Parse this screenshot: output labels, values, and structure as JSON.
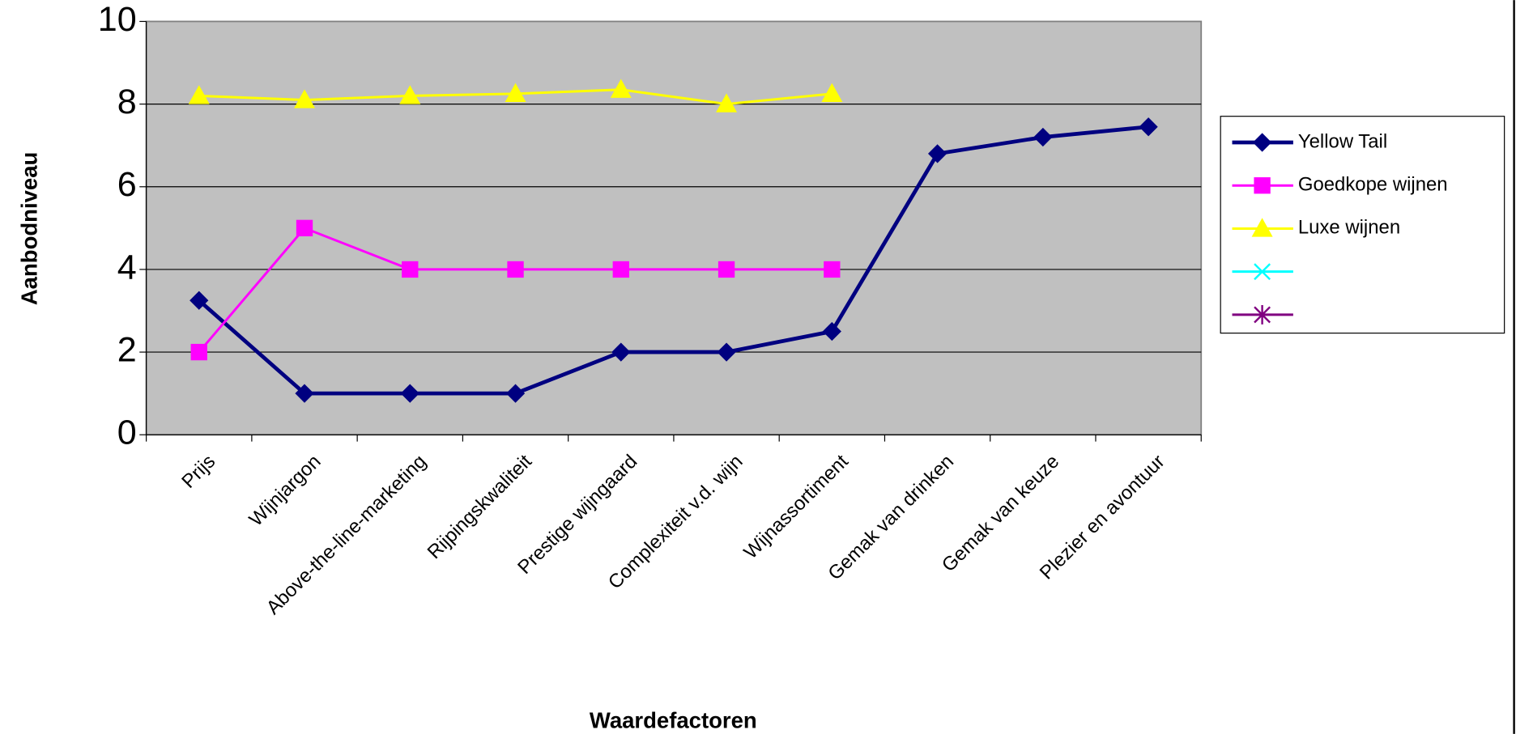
{
  "chart_data": {
    "type": "line",
    "x_label": "Waardefactoren",
    "y_label": "Aanbodniveau",
    "categories": [
      "Prijs",
      "Wijnjargon",
      "Above-the-line-marketing",
      "Rijpingskwaliteit",
      "Prestige wijngaard",
      "Complexiteit v.d. wijn",
      "Wijnassortiment",
      "Gemak van drinken",
      "Gemak van keuze",
      "Plezier en avontuur"
    ],
    "series": [
      {
        "name": "Yellow Tail",
        "color": "#000080",
        "marker": "diamond",
        "values": [
          3.25,
          1,
          1,
          1,
          2,
          2,
          2.5,
          6.8,
          7.2,
          7.45
        ]
      },
      {
        "name": "Goedkope wijnen",
        "color": "#ff00ff",
        "marker": "square",
        "values": [
          2,
          5,
          4,
          4,
          4,
          4,
          4,
          null,
          null,
          null
        ]
      },
      {
        "name": "Luxe wijnen",
        "color": "#ffff00",
        "marker": "triangle",
        "values": [
          8.2,
          8.1,
          8.2,
          8.25,
          8.35,
          8.0,
          8.25,
          null,
          null,
          null
        ]
      },
      {
        "name": null,
        "color": "#00ffff",
        "marker": "x",
        "values": [
          null,
          null,
          null,
          null,
          null,
          null,
          null,
          null,
          null,
          null
        ]
      },
      {
        "name": null,
        "color": "#800080",
        "marker": "star",
        "values": [
          null,
          null,
          null,
          null,
          null,
          null,
          null,
          null,
          null,
          null
        ]
      }
    ],
    "ylim": [
      0,
      10
    ],
    "yticks": [
      0,
      2,
      4,
      6,
      8,
      10
    ],
    "grid": true,
    "legend": "right"
  }
}
